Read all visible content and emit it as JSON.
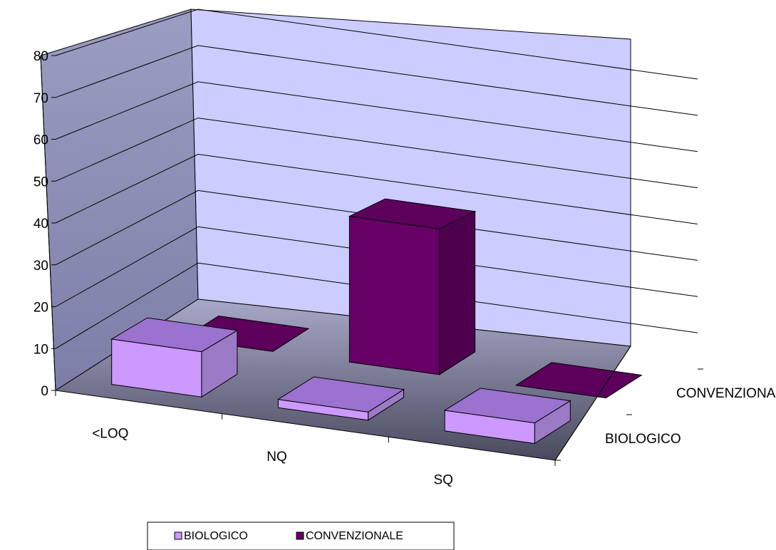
{
  "chart_data": {
    "type": "bar",
    "title": "",
    "xlabel": "",
    "ylabel": "",
    "categories": [
      "<LOQ",
      "NQ",
      "SQ"
    ],
    "series": [
      {
        "name": "BIOLOGICO",
        "values": [
          11,
          2,
          5
        ]
      },
      {
        "name": "CONVENZIONALE",
        "values": [
          0,
          38,
          0
        ]
      }
    ],
    "ylim": [
      0,
      80
    ],
    "yticks": [
      "0",
      "10",
      "20",
      "30",
      "40",
      "50",
      "60",
      "70",
      "80"
    ],
    "grid": true,
    "legend_position": "bottom"
  },
  "colors": {
    "biologico_front": "#cc99ff",
    "biologico_side": "#9b7ac6",
    "biologico_top": "#9b72cf",
    "convenzionale_front": "#660066",
    "convenzionale_side": "#4d004d",
    "convenzionale_top": "#5c005c",
    "back_wall": "#ccccff",
    "side_wall": "#8f90b8"
  }
}
